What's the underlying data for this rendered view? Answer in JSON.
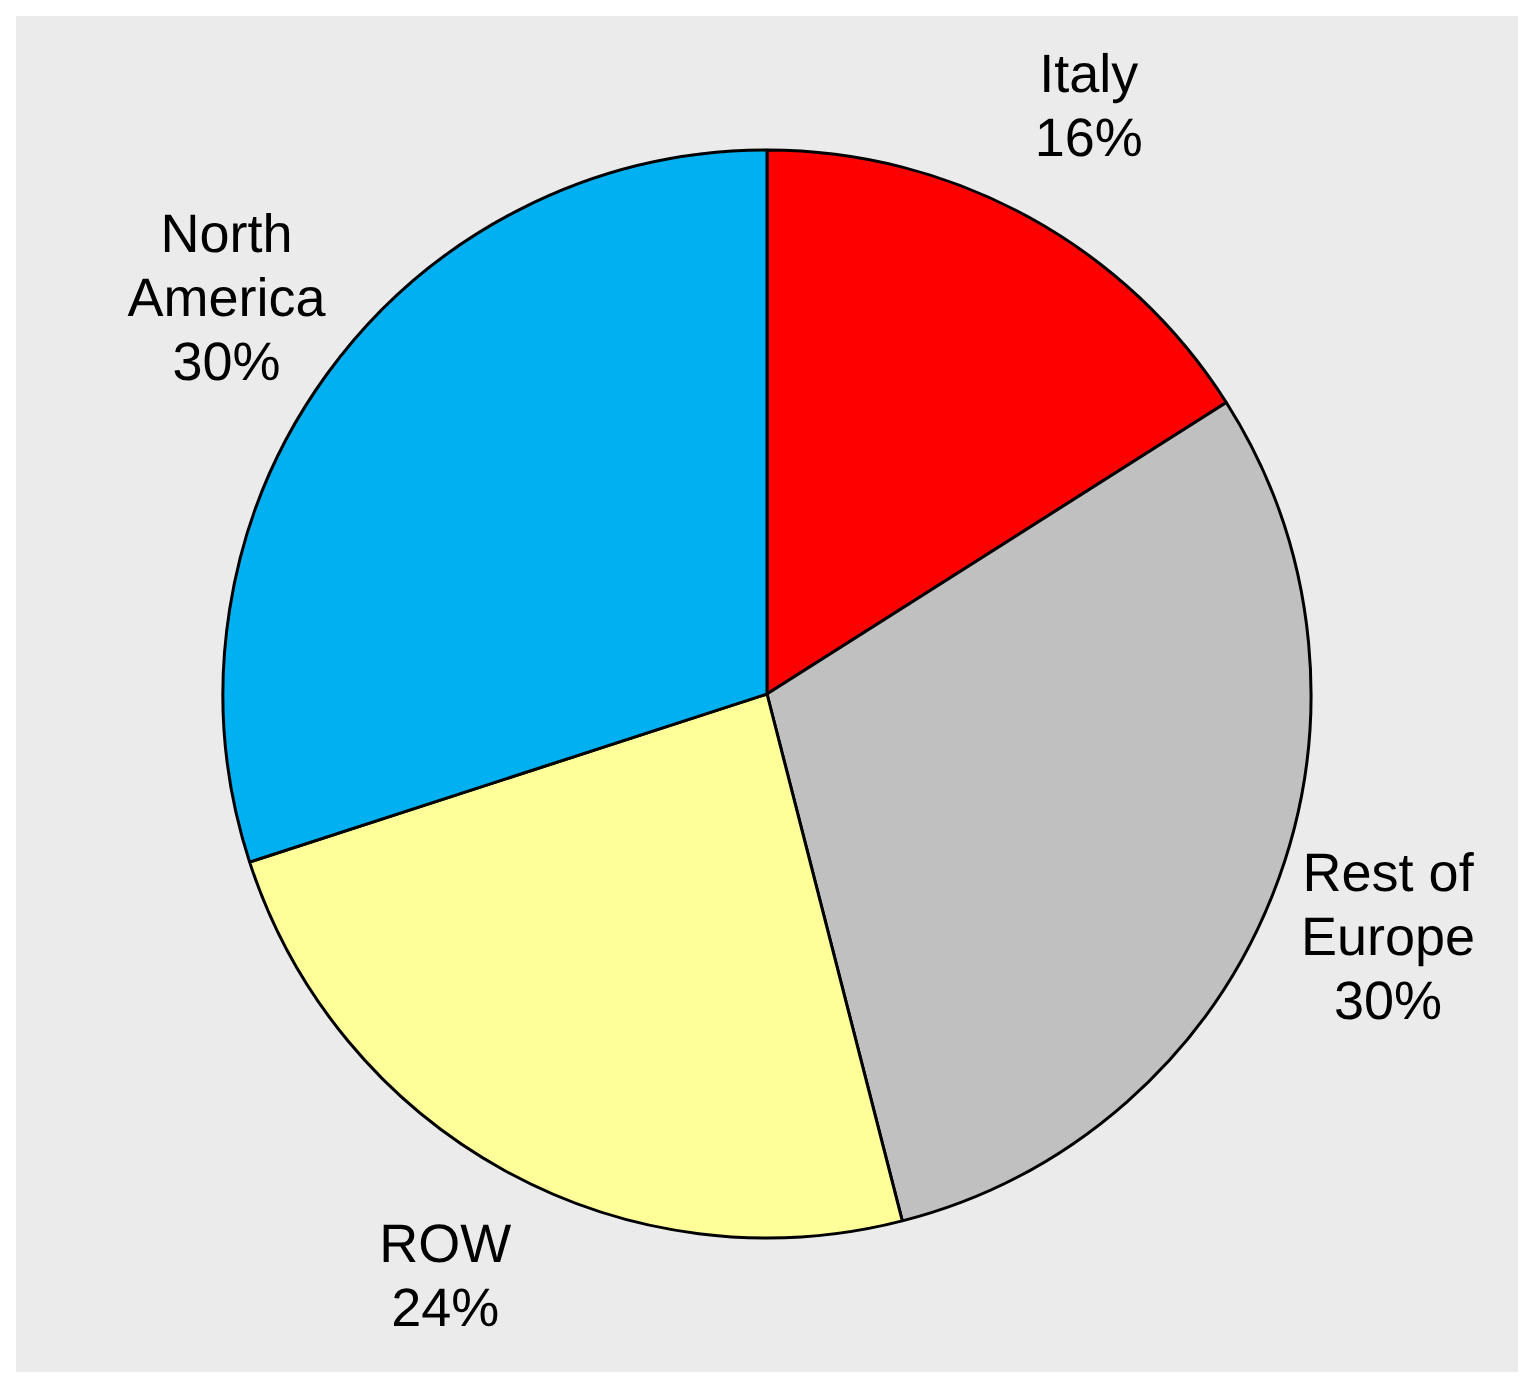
{
  "chart_data": {
    "type": "pie",
    "categories": [
      "Italy",
      "Rest of Europe",
      "ROW",
      "North America"
    ],
    "values": [
      16,
      30,
      24,
      30
    ],
    "colors": [
      "#ff0000",
      "#c0c0c0",
      "#ffff99",
      "#00b0f0"
    ],
    "legend": false,
    "value_labels": [
      "16%",
      "30%",
      "24%",
      "30%"
    ]
  }
}
